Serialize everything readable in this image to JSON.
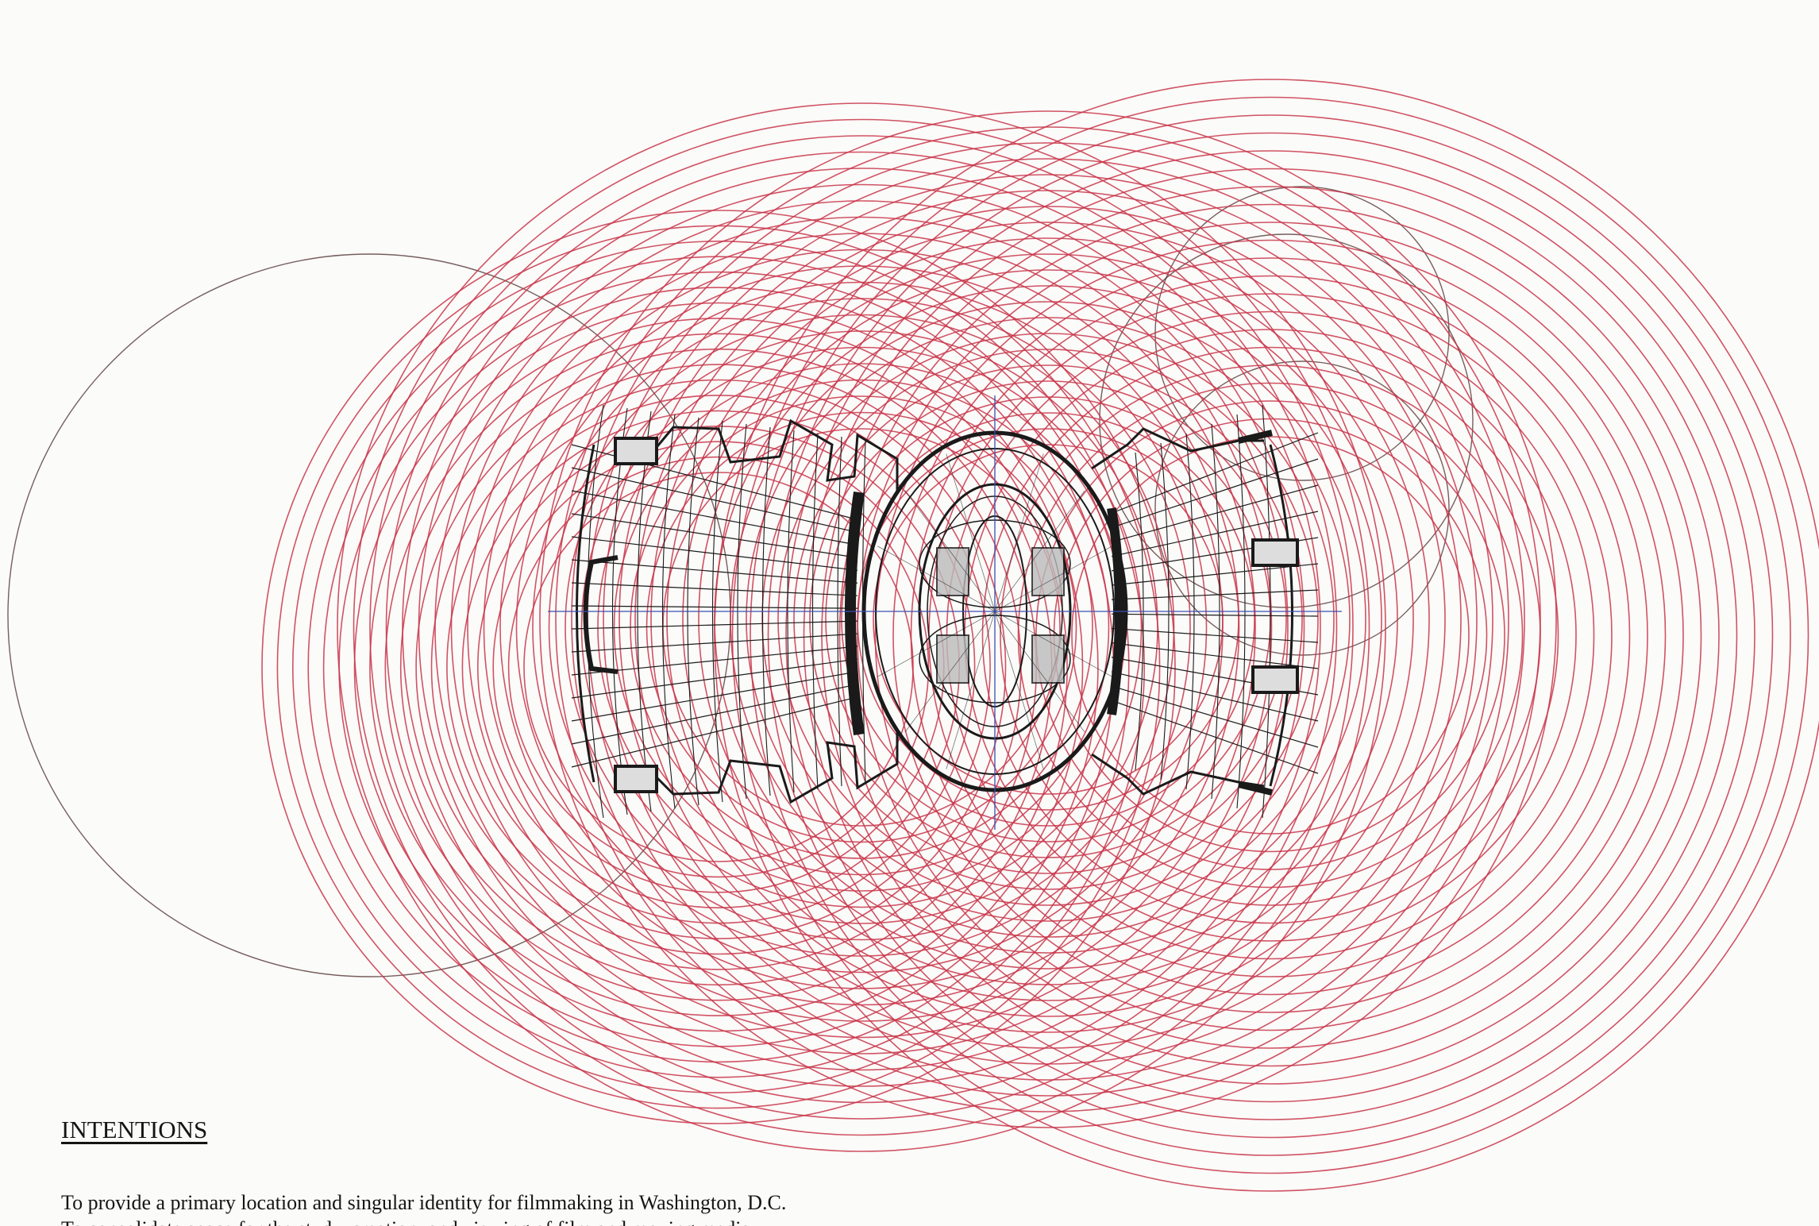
{
  "colors": {
    "paper": "#fbfbf9",
    "circles": "#c8354a",
    "construction": "#4a2a2a",
    "plan": "#1a1a1a",
    "axis": "#3a4fb0"
  },
  "drawing": {
    "subject": "circular architectural floor plan",
    "red_circle_rings": 4
  },
  "text": {
    "heading": "INTENTIONS",
    "line1": "To provide a primary location and singular identity for filmmaking in Washington, D.C.",
    "line2_cut": "To consolidate space for the study, creation, and viewing of film and moving media."
  }
}
